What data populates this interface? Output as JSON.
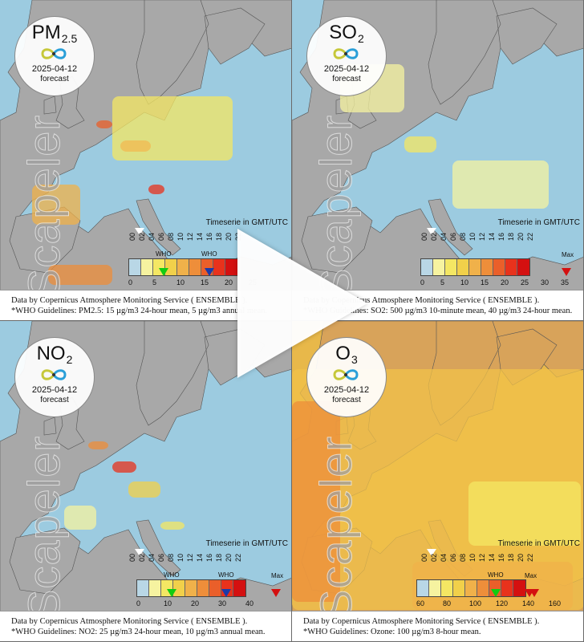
{
  "colors": {
    "sea": "#9ccbe0",
    "land": "#a8a8a8",
    "scale": [
      "#b9d7e6",
      "#f6f3a0",
      "#f4e763",
      "#f1d04a",
      "#f0b14a",
      "#ee8e3a",
      "#ea5f2a",
      "#e8321c",
      "#d41010"
    ]
  },
  "overlay": {
    "play_icon": "play-icon"
  },
  "panels": [
    {
      "id": "pm25",
      "pollutant": "PM",
      "pollutant_sub": "2.5",
      "date": "2025-04-12",
      "status": "forecast",
      "brand": "Scapeler",
      "timeserie_label": "Timeserie in GMT/UTC",
      "hours": [
        "00",
        "02",
        "04",
        "06",
        "08",
        "10",
        "12",
        "14",
        "16",
        "18",
        "20",
        "22"
      ],
      "scale_values": [
        "0",
        "5",
        "10",
        "15",
        "20",
        "25"
      ],
      "who_labels": [
        "WHO",
        "WHO"
      ],
      "max_label": "",
      "footer_line1": "Data by Copernicus Atmosphere Monitoring Service ( ENSEMBLE ).",
      "footer_line2": "*WHO Guidelines: PM2.5: 15 µg/m3 24-hour mean, 5 µg/m3 annual mean."
    },
    {
      "id": "so2",
      "pollutant": "SO",
      "pollutant_sub": "2",
      "date": "2025-04-12",
      "status": "forecast",
      "brand": "Scapeler",
      "timeserie_label": "Timeserie in GMT/UTC",
      "hours": [
        "00",
        "02",
        "04",
        "06",
        "08",
        "10",
        "12",
        "14",
        "16",
        "18",
        "20",
        "22"
      ],
      "scale_values": [
        "0",
        "5",
        "10",
        "15",
        "20",
        "25",
        "30",
        "35"
      ],
      "who_labels": [],
      "max_label": "Max",
      "footer_line1": "Data by Copernicus Atmosphere Monitoring Service ( ENSEMBLE ).",
      "footer_line2": "*WHO Guidelines: SO2: 500 µg/m3 10-minute mean, 40 µg/m3 24-hour mean."
    },
    {
      "id": "no2",
      "pollutant": "NO",
      "pollutant_sub": "2",
      "date": "2025-04-12",
      "status": "forecast",
      "brand": "Scapeler",
      "timeserie_label": "Timeserie in GMT/UTC",
      "hours": [
        "00",
        "02",
        "04",
        "06",
        "08",
        "10",
        "12",
        "14",
        "16",
        "18",
        "20",
        "22"
      ],
      "scale_values": [
        "0",
        "10",
        "20",
        "30",
        "40"
      ],
      "who_labels": [
        "WHO",
        "WHO"
      ],
      "max_label": "Max",
      "footer_line1": "Data by Copernicus Atmosphere Monitoring Service ( ENSEMBLE ).",
      "footer_line2": "*WHO Guidelines: NO2: 25 µg/m3 24-hour mean, 10 µg/m3 annual mean."
    },
    {
      "id": "o3",
      "pollutant": "O",
      "pollutant_sub": "3",
      "date": "2025-04-12",
      "status": "forecast",
      "brand": "Scapeler",
      "timeserie_label": "Timeserie in GMT/UTC",
      "hours": [
        "00",
        "02",
        "04",
        "06",
        "08",
        "10",
        "12",
        "14",
        "16",
        "18",
        "20",
        "22"
      ],
      "scale_values": [
        "60",
        "80",
        "100",
        "120",
        "140",
        "160"
      ],
      "who_labels": [
        "WHO"
      ],
      "max_label": "Max",
      "footer_line1": "Data by Copernicus Atmosphere Monitoring Service ( ENSEMBLE ).",
      "footer_line2": "*WHO Guidelines: Ozone: 100 µg/m3 8-hour mean."
    }
  ]
}
